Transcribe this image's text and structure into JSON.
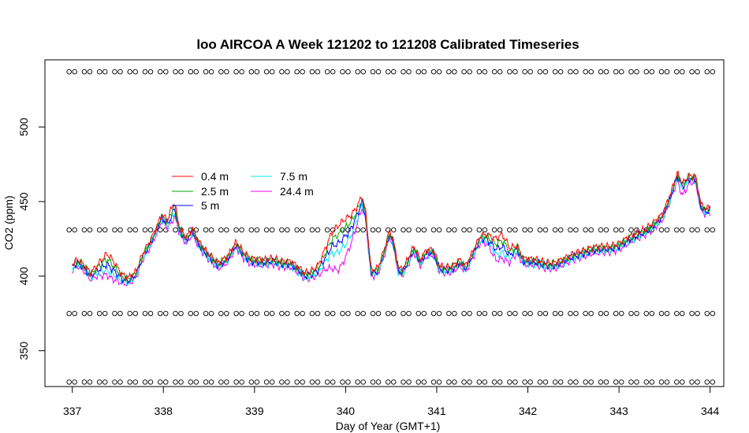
{
  "chart_data": {
    "type": "line",
    "title": "loo AIRCOA A  Week 121202 to 121208  Calibrated Timeseries",
    "xlabel": "Day of Year (GMT+1)",
    "ylabel": "CO2 (ppm)",
    "xlim": [
      336.7,
      344.15
    ],
    "ylim": [
      326,
      545
    ],
    "xticks": [
      337,
      338,
      339,
      340,
      341,
      342,
      343,
      344
    ],
    "yticks": [
      350,
      400,
      450,
      500
    ],
    "legend_position": "upper-left",
    "base_profile": [
      [
        337.0,
        406
      ],
      [
        337.06,
        409
      ],
      [
        337.12,
        406
      ],
      [
        337.2,
        400
      ],
      [
        337.28,
        404
      ],
      [
        337.38,
        408
      ],
      [
        337.45,
        404
      ],
      [
        337.55,
        398
      ],
      [
        337.62,
        397
      ],
      [
        337.7,
        401
      ],
      [
        337.78,
        414
      ],
      [
        337.85,
        421
      ],
      [
        337.92,
        430
      ],
      [
        337.98,
        439
      ],
      [
        338.05,
        435
      ],
      [
        338.12,
        445
      ],
      [
        338.18,
        430
      ],
      [
        338.25,
        424
      ],
      [
        338.32,
        430
      ],
      [
        338.4,
        420
      ],
      [
        338.5,
        413
      ],
      [
        338.6,
        407
      ],
      [
        338.7,
        411
      ],
      [
        338.8,
        421
      ],
      [
        338.88,
        414
      ],
      [
        338.96,
        410
      ],
      [
        339.1,
        409
      ],
      [
        339.2,
        410
      ],
      [
        339.3,
        408
      ],
      [
        339.4,
        408
      ],
      [
        339.48,
        404
      ],
      [
        339.55,
        400
      ],
      [
        339.62,
        401
      ],
      [
        339.7,
        404
      ],
      [
        339.78,
        413
      ],
      [
        339.85,
        420
      ],
      [
        339.92,
        422
      ],
      [
        340.0,
        427
      ],
      [
        340.06,
        432
      ],
      [
        340.12,
        440
      ],
      [
        340.18,
        450
      ],
      [
        340.22,
        440
      ],
      [
        340.28,
        402
      ],
      [
        340.35,
        403
      ],
      [
        340.42,
        415
      ],
      [
        340.48,
        428
      ],
      [
        340.52,
        423
      ],
      [
        340.58,
        404
      ],
      [
        340.62,
        402
      ],
      [
        340.68,
        409
      ],
      [
        340.75,
        418
      ],
      [
        340.82,
        409
      ],
      [
        340.88,
        415
      ],
      [
        340.96,
        416
      ],
      [
        341.03,
        405
      ],
      [
        341.1,
        404
      ],
      [
        341.18,
        405
      ],
      [
        341.25,
        409
      ],
      [
        341.32,
        405
      ],
      [
        341.4,
        415
      ],
      [
        341.48,
        425
      ],
      [
        341.55,
        425
      ],
      [
        341.65,
        418
      ],
      [
        341.72,
        420
      ],
      [
        341.8,
        414
      ],
      [
        341.88,
        418
      ],
      [
        341.95,
        410
      ],
      [
        342.1,
        409
      ],
      [
        342.2,
        407
      ],
      [
        342.3,
        407
      ],
      [
        342.4,
        410
      ],
      [
        342.5,
        413
      ],
      [
        342.6,
        415
      ],
      [
        342.7,
        417
      ],
      [
        342.8,
        418
      ],
      [
        342.9,
        418
      ],
      [
        343.0,
        420
      ],
      [
        343.1,
        424
      ],
      [
        343.2,
        427
      ],
      [
        343.3,
        430
      ],
      [
        343.4,
        435
      ],
      [
        343.48,
        440
      ],
      [
        343.56,
        452
      ],
      [
        343.64,
        467
      ],
      [
        343.7,
        460
      ],
      [
        343.76,
        465
      ],
      [
        343.84,
        465
      ],
      [
        343.9,
        446
      ],
      [
        343.96,
        443
      ],
      [
        344.0,
        445
      ]
    ],
    "series": [
      {
        "name": "0.4 m",
        "color": "#ff0000",
        "height_index": 0
      },
      {
        "name": "2.5 m",
        "color": "#00aa00",
        "height_index": 1
      },
      {
        "name": "5 m",
        "color": "#0000ff",
        "height_index": 2
      },
      {
        "name": "7.5 m",
        "color": "#00e5ee",
        "height_index": 3
      },
      {
        "name": "24.4 m",
        "color": "#ee00ee",
        "height_index": 4
      }
    ],
    "calibration_rows": [
      {
        "name": "cal-537",
        "y": 537
      },
      {
        "name": "cal-431",
        "y": 431
      },
      {
        "name": "cal-375",
        "y": 375
      },
      {
        "name": "cal-329",
        "y": 329
      }
    ],
    "calibration_x_start": 337.0,
    "calibration_x_step": 0.1667,
    "calibration_count": 43
  }
}
